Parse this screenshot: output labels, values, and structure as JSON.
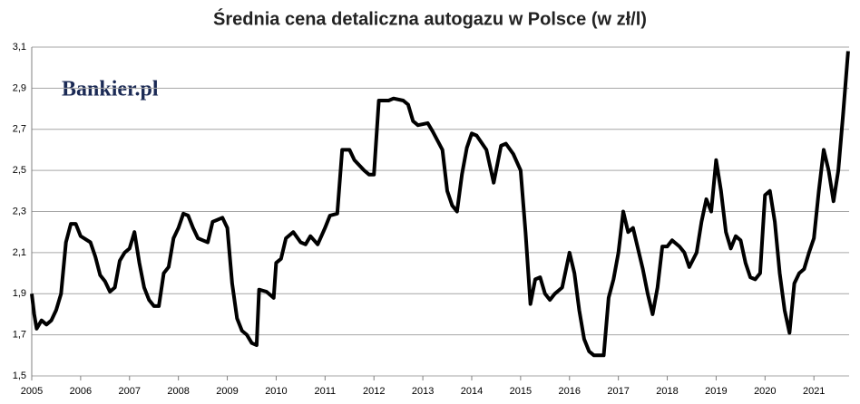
{
  "chart_data": {
    "type": "line",
    "title": "Średnia cena detaliczna autogazu w Polsce (w zł/l)",
    "logo": "Bankier.pl",
    "x": [
      2005.0,
      2005.05,
      2005.1,
      2005.2,
      2005.3,
      2005.4,
      2005.5,
      2005.6,
      2005.7,
      2005.8,
      2005.9,
      2006.0,
      2006.2,
      2006.3,
      2006.4,
      2006.5,
      2006.6,
      2006.7,
      2006.8,
      2006.9,
      2007.0,
      2007.1,
      2007.2,
      2007.3,
      2007.4,
      2007.5,
      2007.6,
      2007.7,
      2007.8,
      2007.9,
      2008.0,
      2008.1,
      2008.2,
      2008.3,
      2008.4,
      2008.5,
      2008.6,
      2008.7,
      2008.8,
      2008.9,
      2009.0,
      2009.1,
      2009.2,
      2009.3,
      2009.4,
      2009.5,
      2009.6,
      2009.65,
      2009.8,
      2009.95,
      2010.0,
      2010.1,
      2010.2,
      2010.35,
      2010.5,
      2010.6,
      2010.7,
      2010.85,
      2011.0,
      2011.1,
      2011.25,
      2011.35,
      2011.5,
      2011.6,
      2011.8,
      2011.9,
      2012.0,
      2012.1,
      2012.3,
      2012.4,
      2012.6,
      2012.7,
      2012.8,
      2012.9,
      2013.1,
      2013.2,
      2013.4,
      2013.5,
      2013.6,
      2013.7,
      2013.8,
      2013.9,
      2014.0,
      2014.1,
      2014.3,
      2014.45,
      2014.6,
      2014.7,
      2014.85,
      2015.0,
      2015.1,
      2015.2,
      2015.3,
      2015.4,
      2015.5,
      2015.6,
      2015.7,
      2015.85,
      2016.0,
      2016.1,
      2016.2,
      2016.3,
      2016.4,
      2016.5,
      2016.6,
      2016.7,
      2016.8,
      2016.9,
      2017.0,
      2017.1,
      2017.2,
      2017.3,
      2017.4,
      2017.5,
      2017.6,
      2017.7,
      2017.8,
      2017.9,
      2018.0,
      2018.1,
      2018.25,
      2018.35,
      2018.45,
      2018.6,
      2018.7,
      2018.8,
      2018.9,
      2019.0,
      2019.1,
      2019.2,
      2019.3,
      2019.4,
      2019.5,
      2019.6,
      2019.7,
      2019.8,
      2019.9,
      2020.0,
      2020.1,
      2020.2,
      2020.3,
      2020.4,
      2020.5,
      2020.6,
      2020.7,
      2020.8,
      2020.9,
      2021.0,
      2021.1,
      2021.2,
      2021.3,
      2021.4,
      2021.5,
      2021.6,
      2021.7
    ],
    "values": [
      1.9,
      1.8,
      1.73,
      1.77,
      1.75,
      1.77,
      1.82,
      1.9,
      2.15,
      2.24,
      2.24,
      2.18,
      2.15,
      2.08,
      1.99,
      1.96,
      1.91,
      1.93,
      2.06,
      2.1,
      2.12,
      2.2,
      2.05,
      1.93,
      1.87,
      1.84,
      1.84,
      2.0,
      2.03,
      2.17,
      2.22,
      2.29,
      2.28,
      2.22,
      2.17,
      2.16,
      2.15,
      2.25,
      2.26,
      2.27,
      2.22,
      1.95,
      1.78,
      1.72,
      1.7,
      1.66,
      1.65,
      1.92,
      1.91,
      1.88,
      2.05,
      2.07,
      2.17,
      2.2,
      2.15,
      2.14,
      2.18,
      2.14,
      2.22,
      2.28,
      2.29,
      2.6,
      2.6,
      2.55,
      2.5,
      2.48,
      2.48,
      2.84,
      2.84,
      2.85,
      2.84,
      2.82,
      2.74,
      2.72,
      2.73,
      2.69,
      2.6,
      2.4,
      2.33,
      2.3,
      2.48,
      2.61,
      2.68,
      2.67,
      2.6,
      2.44,
      2.62,
      2.63,
      2.58,
      2.5,
      2.2,
      1.85,
      1.97,
      1.98,
      1.9,
      1.87,
      1.9,
      1.93,
      2.1,
      2.0,
      1.82,
      1.68,
      1.62,
      1.6,
      1.6,
      1.6,
      1.88,
      1.97,
      2.1,
      2.3,
      2.2,
      2.22,
      2.12,
      2.02,
      1.9,
      1.8,
      1.93,
      2.13,
      2.13,
      2.16,
      2.13,
      2.1,
      2.03,
      2.1,
      2.25,
      2.36,
      2.3,
      2.55,
      2.4,
      2.2,
      2.12,
      2.18,
      2.16,
      2.05,
      1.98,
      1.97,
      2.0,
      2.38,
      2.4,
      2.25,
      2.0,
      1.82,
      1.71,
      1.95,
      2.0,
      2.02,
      2.1,
      2.17,
      2.4,
      2.6,
      2.5,
      2.35,
      2.5,
      2.78,
      3.08
    ],
    "color": "#000000",
    "xlim": [
      2005,
      2021.72
    ],
    "xticks": [
      2005,
      2006,
      2007,
      2008,
      2009,
      2010,
      2011,
      2012,
      2013,
      2014,
      2015,
      2016,
      2017,
      2018,
      2019,
      2020,
      2021
    ],
    "ylim": [
      1.5,
      3.1
    ],
    "yticks": [
      {
        "value": 1.5,
        "label": "1,5"
      },
      {
        "value": 1.7,
        "label": "1,7"
      },
      {
        "value": 1.9,
        "label": "1,9"
      },
      {
        "value": 2.1,
        "label": "2,1"
      },
      {
        "value": 2.3,
        "label": "2,3"
      },
      {
        "value": 2.5,
        "label": "2,5"
      },
      {
        "value": 2.7,
        "label": "2,7"
      },
      {
        "value": 2.9,
        "label": "2,9"
      },
      {
        "value": 3.1,
        "label": "3,1"
      }
    ],
    "grid": true
  }
}
